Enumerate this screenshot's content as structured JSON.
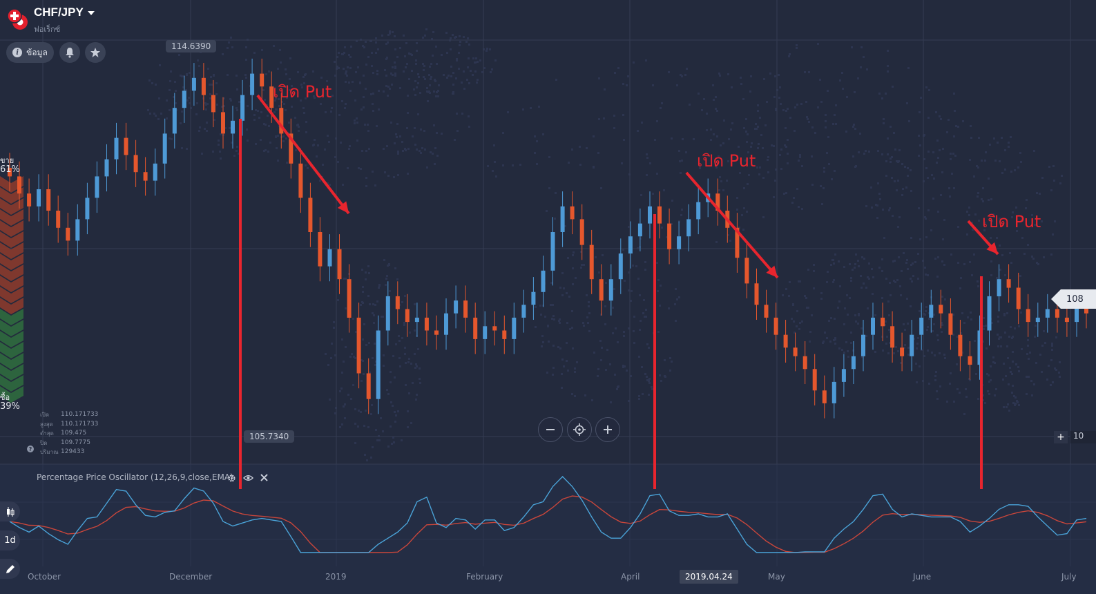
{
  "header": {
    "pair": "CHF/JPY",
    "subtitle": "ฟอเร็กซ์",
    "info_button": "ข้อมูล",
    "bell_icon": "bell-icon",
    "star_icon": "star-icon"
  },
  "sentiment": {
    "sell_label": "ขาย",
    "sell_pct": "61%",
    "buy_label": "ซื้อ",
    "buy_pct": "39%",
    "sell_fraction": 0.61,
    "buy_fraction": 0.39
  },
  "price_tags": {
    "high": "114.6390",
    "low": "105.7340",
    "current": "108",
    "crosshair": "10"
  },
  "ohlc": [
    {
      "key": "เปิด",
      "value": "110.171733"
    },
    {
      "key": "สูงสุด",
      "value": "110.171733"
    },
    {
      "key": "ต่ำสุด",
      "value": "109.475"
    },
    {
      "key": "ปิด",
      "value": "109.7775"
    },
    {
      "key": "ปริมาณ",
      "value": "129433"
    }
  ],
  "indicator": {
    "label": "Percentage Price Oscillator (12,26,9,close,EMA)"
  },
  "toolbar": {
    "timeframe": "1d"
  },
  "x_axis": {
    "labels": [
      "October",
      "December",
      "2019",
      "February",
      "April",
      "May",
      "June",
      "July"
    ],
    "selected_date": "2019.04.24"
  },
  "annotations": [
    {
      "text": "เปิด Put"
    },
    {
      "text": "เปิด Put"
    },
    {
      "text": "เปิด Put"
    }
  ],
  "colors": {
    "background": "#232a3d",
    "bull": "#4e9ad6",
    "bear": "#e5572d",
    "annotation": "#e8252e",
    "ppo_line": "#4aa3d8",
    "signal_line": "#c9463b"
  },
  "chart_data": {
    "type": "candlestick",
    "ylim": [
      105.734,
      114.639
    ],
    "closes": [
      111.6,
      111.2,
      110.9,
      111.3,
      110.8,
      110.4,
      110.1,
      110.6,
      111.1,
      111.6,
      112.0,
      112.5,
      112.1,
      111.7,
      111.5,
      111.9,
      112.6,
      113.2,
      113.6,
      113.9,
      113.5,
      113.1,
      112.6,
      112.9,
      113.5,
      114.0,
      113.7,
      113.2,
      112.6,
      111.9,
      111.1,
      110.3,
      109.5,
      109.9,
      109.2,
      108.3,
      107.0,
      106.4,
      108.0,
      108.8,
      108.5,
      108.2,
      108.3,
      108.0,
      107.9,
      108.4,
      108.7,
      108.3,
      107.8,
      108.1,
      108.0,
      107.8,
      108.3,
      108.6,
      108.9,
      109.4,
      110.3,
      110.9,
      110.6,
      110.0,
      109.2,
      108.7,
      109.2,
      109.8,
      110.2,
      110.5,
      110.9,
      110.5,
      109.9,
      110.2,
      110.6,
      111.0,
      111.2,
      110.8,
      110.4,
      109.7,
      109.1,
      108.6,
      108.3,
      107.9,
      107.6,
      107.4,
      107.1,
      106.6,
      106.3,
      106.8,
      107.1,
      107.4,
      107.9,
      108.3,
      108.1,
      107.6,
      107.4,
      107.9,
      108.3,
      108.6,
      108.4,
      107.9,
      107.4,
      107.2,
      108.0,
      108.8,
      109.2,
      109.0,
      108.5,
      108.2,
      108.3,
      108.5,
      108.3,
      108.2,
      108.6,
      108.4
    ]
  }
}
